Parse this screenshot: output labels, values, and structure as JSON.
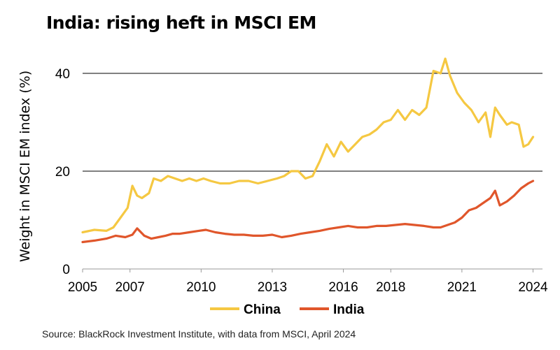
{
  "title": "India: rising heft in MSCI EM",
  "source": "Source: BlackRock Investment Institute, with data from MSCI, April 2024",
  "chart_data": {
    "type": "line",
    "ylabel": "Weight in MSCI EM index (%)",
    "xlabel": "",
    "xlim": [
      2005,
      2024.4
    ],
    "ylim": [
      0,
      45
    ],
    "x_ticks": [
      2005,
      2007,
      2010,
      2013,
      2016,
      2018,
      2021,
      2024
    ],
    "x_tick_labels": [
      "2005",
      "2007",
      "2010",
      "2013",
      "2016",
      "2018",
      "2021",
      "2024"
    ],
    "y_ticks": [
      0,
      20,
      40
    ],
    "y_tick_labels": [
      "0",
      "20",
      "40"
    ],
    "gridlines": "horizontal",
    "legend_position": "bottom",
    "series": [
      {
        "name": "China",
        "color": "#f5c842",
        "x": [
          2005.0,
          2005.5,
          2006.0,
          2006.3,
          2006.6,
          2006.9,
          2007.1,
          2007.3,
          2007.5,
          2007.8,
          2008.0,
          2008.3,
          2008.6,
          2008.9,
          2009.2,
          2009.5,
          2009.8,
          2010.1,
          2010.4,
          2010.8,
          2011.2,
          2011.6,
          2012.0,
          2012.4,
          2012.8,
          2013.2,
          2013.5,
          2013.8,
          2014.1,
          2014.4,
          2014.7,
          2015.0,
          2015.3,
          2015.6,
          2015.9,
          2016.2,
          2016.5,
          2016.8,
          2017.1,
          2017.4,
          2017.7,
          2018.0,
          2018.3,
          2018.6,
          2018.9,
          2019.2,
          2019.5,
          2019.8,
          2020.1,
          2020.3,
          2020.5,
          2020.8,
          2021.1,
          2021.4,
          2021.7,
          2022.0,
          2022.2,
          2022.4,
          2022.6,
          2022.9,
          2023.1,
          2023.4,
          2023.6,
          2023.8,
          2024.0
        ],
        "values": [
          7.5,
          8.0,
          7.8,
          8.5,
          10.5,
          12.5,
          17.0,
          15.0,
          14.5,
          15.5,
          18.5,
          18.0,
          19.0,
          18.5,
          18.0,
          18.5,
          18.0,
          18.5,
          18.0,
          17.5,
          17.5,
          18.0,
          18.0,
          17.5,
          18.0,
          18.5,
          19.0,
          20.0,
          20.0,
          18.5,
          19.0,
          22.0,
          25.5,
          23.0,
          26.0,
          24.0,
          25.5,
          27.0,
          27.5,
          28.5,
          30.0,
          30.5,
          32.5,
          30.5,
          32.5,
          31.5,
          33.0,
          40.5,
          40.0,
          43.0,
          39.5,
          36.0,
          34.0,
          32.5,
          30.0,
          32.0,
          27.0,
          33.0,
          31.5,
          29.5,
          30.0,
          29.5,
          25.0,
          25.5,
          27.0
        ]
      },
      {
        "name": "India",
        "color": "#e0562b",
        "x": [
          2005.0,
          2005.5,
          2006.0,
          2006.4,
          2006.8,
          2007.1,
          2007.3,
          2007.6,
          2007.9,
          2008.2,
          2008.5,
          2008.8,
          2009.1,
          2009.5,
          2009.9,
          2010.2,
          2010.6,
          2011.0,
          2011.4,
          2011.8,
          2012.2,
          2012.6,
          2013.0,
          2013.4,
          2013.8,
          2014.2,
          2014.6,
          2015.0,
          2015.4,
          2015.8,
          2016.2,
          2016.6,
          2017.0,
          2017.4,
          2017.8,
          2018.2,
          2018.6,
          2019.0,
          2019.4,
          2019.8,
          2020.1,
          2020.4,
          2020.7,
          2021.0,
          2021.3,
          2021.6,
          2021.9,
          2022.2,
          2022.4,
          2022.6,
          2022.9,
          2023.2,
          2023.5,
          2023.8,
          2024.0
        ],
        "values": [
          5.5,
          5.8,
          6.2,
          6.8,
          6.5,
          7.0,
          8.3,
          6.8,
          6.2,
          6.5,
          6.8,
          7.2,
          7.2,
          7.5,
          7.8,
          8.0,
          7.5,
          7.2,
          7.0,
          7.0,
          6.8,
          6.8,
          7.0,
          6.5,
          6.8,
          7.2,
          7.5,
          7.8,
          8.2,
          8.5,
          8.8,
          8.5,
          8.5,
          8.8,
          8.8,
          9.0,
          9.2,
          9.0,
          8.8,
          8.5,
          8.5,
          9.0,
          9.5,
          10.5,
          12.0,
          12.5,
          13.5,
          14.5,
          16.0,
          13.0,
          13.8,
          15.0,
          16.5,
          17.5,
          18.0
        ]
      }
    ]
  }
}
